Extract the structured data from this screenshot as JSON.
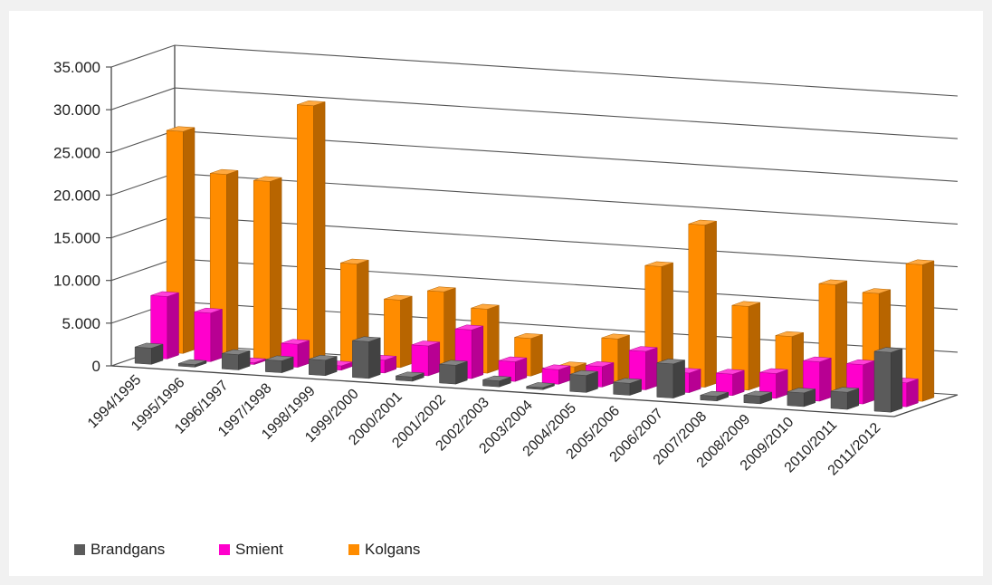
{
  "chart_data": {
    "type": "bar",
    "three_d": true,
    "categories": [
      "1994/1995",
      "1995/1996",
      "1996/1997",
      "1997/1998",
      "1998/1999",
      "1999/2000",
      "2000/2001",
      "2001/2002",
      "2002/2003",
      "2003/2004",
      "2004/2005",
      "2005/2006",
      "2006/2007",
      "2007/2008",
      "2008/2009",
      "2009/2010",
      "2010/2011",
      "2011/2012"
    ],
    "series": [
      {
        "name": "Brandgans",
        "color": "#5b5b5b",
        "values": [
          1900,
          300,
          1800,
          1400,
          1800,
          4300,
          500,
          2200,
          700,
          250,
          2000,
          1400,
          4000,
          550,
          900,
          1600,
          2000,
          7000
        ]
      },
      {
        "name": "Smient",
        "color": "#ff00cc",
        "values": [
          7300,
          5700,
          200,
          2700,
          500,
          1500,
          3500,
          5700,
          2300,
          1700,
          2400,
          4500,
          2300,
          2500,
          2900,
          4600,
          4600,
          2800
        ]
      },
      {
        "name": "Kolgans",
        "color": "#ff8c00",
        "values": [
          26000,
          21300,
          20800,
          30000,
          11800,
          7900,
          9200,
          7500,
          4400,
          1400,
          5000,
          13800,
          19000,
          9800,
          6600,
          13000,
          12300,
          16000
        ]
      }
    ],
    "y_ticks": [
      "0",
      "5.000",
      "10.000",
      "15.000",
      "20.000",
      "25.000",
      "30.000",
      "35.000"
    ],
    "ylim": [
      0,
      35000
    ],
    "grid": true,
    "legend": "bottom-left",
    "title": "",
    "xlabel": "",
    "ylabel": ""
  }
}
